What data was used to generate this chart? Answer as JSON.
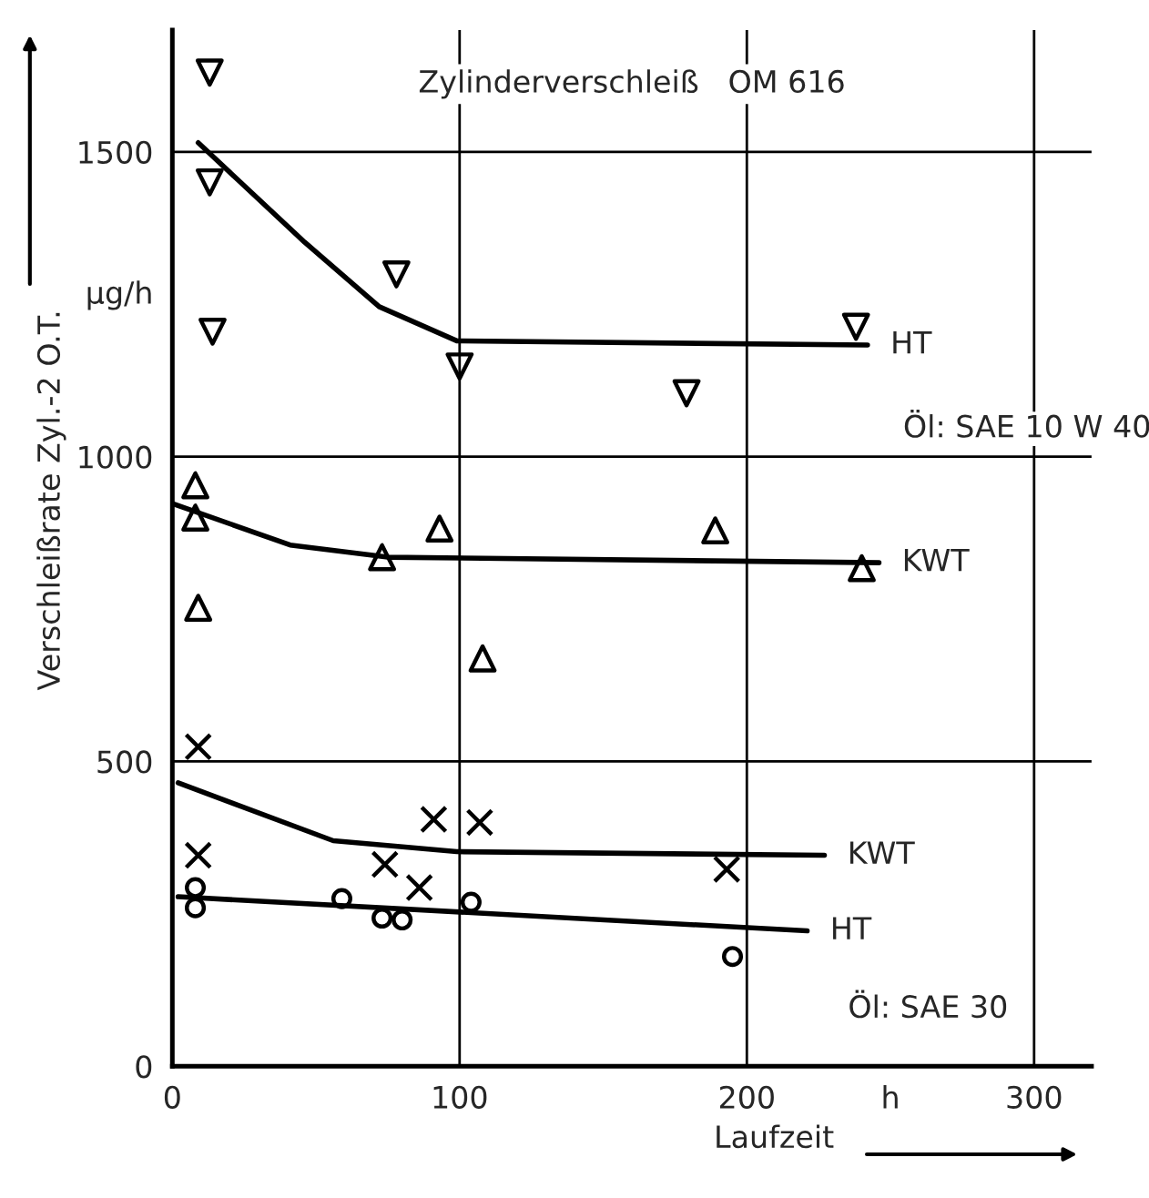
{
  "chart_data": {
    "type": "scatter",
    "title": "Zylinderverschleiß   OM 616",
    "xlabel": "Laufzeit",
    "ylabel": "Verschleißrate Zyl.-2 O.T.",
    "xlim": [
      0,
      320
    ],
    "ylim": [
      0,
      1700
    ],
    "xticks": [
      0,
      100,
      200,
      {
        "value": 250,
        "label": "h"
      },
      300
    ],
    "yticks": [
      0,
      500,
      1000,
      {
        "value": 1270,
        "label": "µg/h"
      },
      1500
    ],
    "grid": true,
    "legend": false,
    "series": [
      {
        "marker": "triangle_down",
        "color": "#000000",
        "x": [
          13,
          13,
          14,
          78,
          100,
          179,
          238
        ],
        "values": [
          1630,
          1450,
          1205,
          1299,
          1148,
          1104,
          1213
        ]
      },
      {
        "type": "line",
        "name": "HT",
        "color": "#000000",
        "marker": "none",
        "x": [
          9,
          46,
          72,
          99,
          242
        ],
        "values": [
          1515,
          1352,
          1246,
          1190,
          1183
        ]
      },
      {
        "marker": "triangle",
        "color": "#000000",
        "x": [
          8,
          8,
          93,
          73,
          189,
          240,
          9,
          108
        ],
        "values": [
          953,
          900,
          882,
          835,
          879,
          817,
          752,
          669
        ]
      },
      {
        "type": "line",
        "name": "KWT",
        "color": "#000000",
        "marker": "none",
        "x": [
          0,
          41,
          75,
          246
        ],
        "values": [
          923,
          855,
          835,
          826
        ]
      },
      {
        "marker": "cross",
        "color": "#000000",
        "x": [
          9,
          9,
          74,
          86,
          91,
          107,
          193
        ],
        "values": [
          524,
          346,
          331,
          293,
          405,
          400,
          323
        ]
      },
      {
        "type": "line",
        "name": "KWT",
        "color": "#000000",
        "marker": "none",
        "x": [
          2,
          56,
          99,
          227
        ],
        "values": [
          465,
          370,
          352,
          346
        ]
      },
      {
        "marker": "circle",
        "color": "#000000",
        "x": [
          8,
          8,
          59,
          73,
          80,
          104,
          195
        ],
        "values": [
          293,
          260,
          275,
          243,
          240,
          269,
          180
        ]
      },
      {
        "type": "line",
        "name": "HT",
        "color": "#000000",
        "marker": "none",
        "x": [
          2,
          221
        ],
        "values": [
          278,
          222
        ]
      }
    ],
    "annotations": [
      "Öl: SAE 10 W 40",
      "Öl: SAE 30"
    ]
  }
}
